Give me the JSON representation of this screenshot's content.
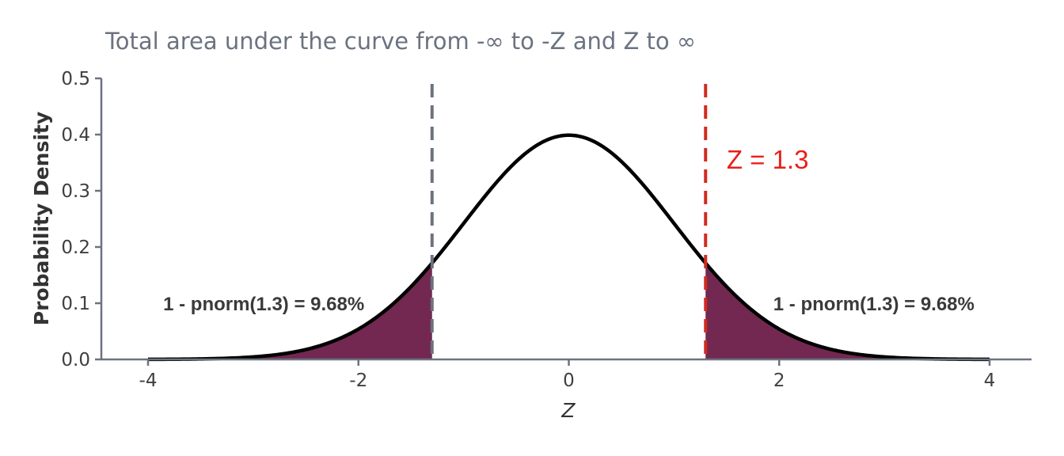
{
  "chart_data": {
    "type": "area",
    "title": "Total area under the curve from -∞ to -Z and Z to ∞",
    "xlabel": "Z",
    "ylabel": "Probability Density",
    "xlim": [
      -4,
      4
    ],
    "ylim": [
      0,
      0.5
    ],
    "x_ticks": [
      -4,
      -2,
      0,
      2,
      4
    ],
    "x_tick_labels": [
      "-4",
      "-2",
      "0",
      "2",
      "4"
    ],
    "y_ticks": [
      0,
      0.1,
      0.2,
      0.3,
      0.4,
      0.5
    ],
    "y_tick_labels": [
      "0.0",
      "0.1",
      "0.2",
      "0.3",
      "0.4",
      "0.5"
    ],
    "grid": false,
    "curve": {
      "distribution": "standard normal density",
      "mean": 0,
      "sd": 1,
      "x_range": [
        -4,
        4
      ],
      "color": "#000000"
    },
    "shaded_regions": [
      {
        "from": -4,
        "to": -1.3,
        "color": "#722850"
      },
      {
        "from": 1.3,
        "to": 4,
        "color": "#722850"
      }
    ],
    "reference_lines": [
      {
        "x": -1.3,
        "color": "#6b7280",
        "style": "dashed"
      },
      {
        "x": 1.3,
        "color": "#d42a1e",
        "style": "dashed"
      }
    ],
    "annotations": [
      {
        "text": "1 - pnorm(1.3) = 9.68%",
        "x": -2.9,
        "y": 0.1,
        "color": "#3a3a3a"
      },
      {
        "text": "1 - pnorm(1.3) = 9.68%",
        "x": 2.9,
        "y": 0.1,
        "color": "#3a3a3a"
      },
      {
        "text": "Z = 1.3",
        "x": 1.5,
        "y": 0.355,
        "color": "#e8201a"
      }
    ]
  }
}
